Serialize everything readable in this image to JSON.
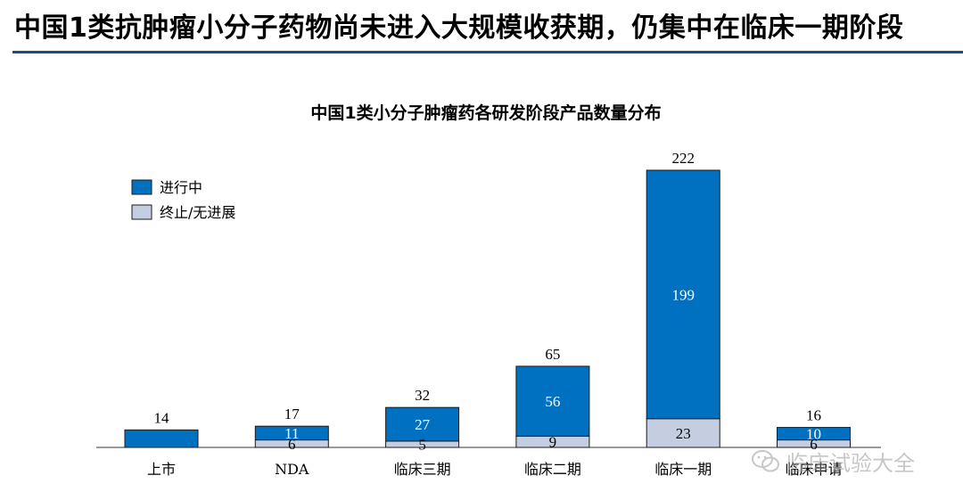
{
  "slide": {
    "title": "中国1类抗肿瘤小分子药物尚未进入大规模收获期，仍集中在临床一期阶段"
  },
  "watermark": {
    "icon": "wechat-icon",
    "text": "临床试验大全"
  },
  "colors": {
    "ongoing": "#0070c0",
    "stopped": "#c5cee0",
    "rule": "#1f4e79",
    "bar_stroke": "#1a1a1a"
  },
  "chart_data": {
    "type": "bar",
    "stacked": true,
    "title": "中国1类小分子肿瘤药各研发阶段产品数量分布",
    "xlabel": "",
    "ylabel": "",
    "categories": [
      "上市",
      "NDA",
      "临床三期",
      "临床二期",
      "临床一期",
      "临床申请"
    ],
    "series": [
      {
        "name": "终止/无进展",
        "values": [
          0,
          6,
          5,
          9,
          23,
          6
        ]
      },
      {
        "name": "进行中",
        "values": [
          14,
          11,
          27,
          56,
          199,
          10
        ]
      }
    ],
    "totals": [
      14,
      17,
      32,
      65,
      222,
      16
    ],
    "segment_labels_shown": {
      "终止/无进展": [
        false,
        true,
        true,
        true,
        true,
        true
      ],
      "进行中": [
        false,
        true,
        true,
        true,
        true,
        true
      ]
    },
    "ylim": [
      0,
      222
    ],
    "grid": false,
    "legend_position": "top-left"
  }
}
